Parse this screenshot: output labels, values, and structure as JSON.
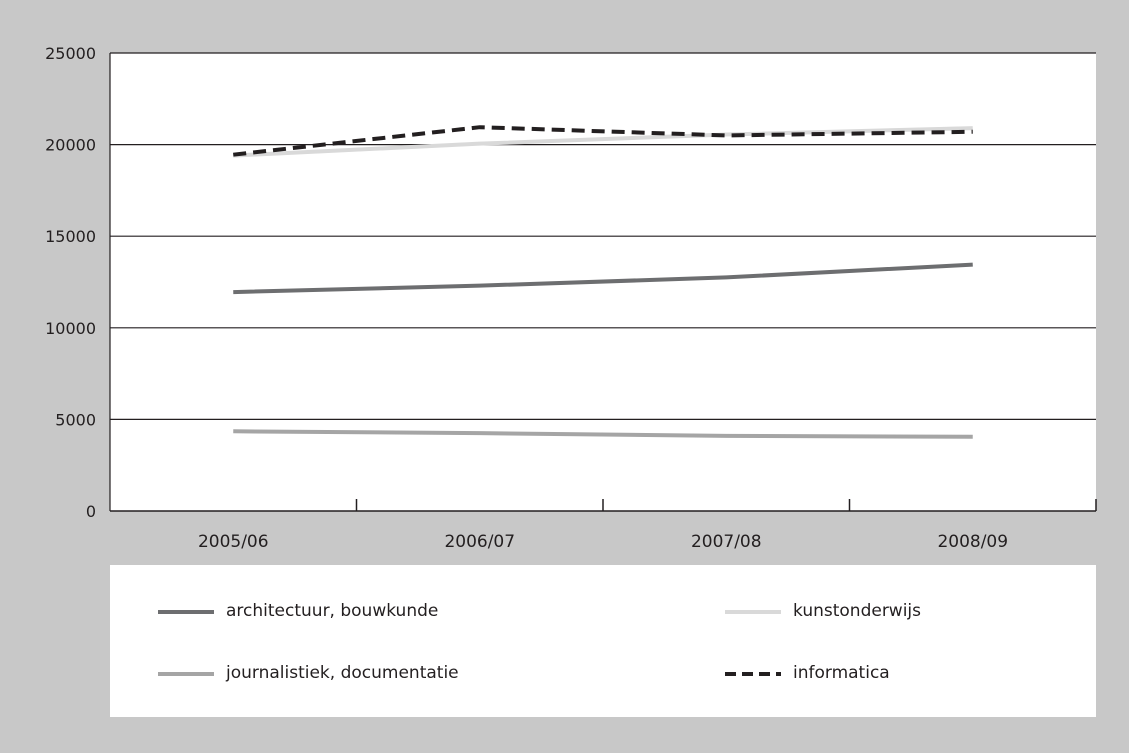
{
  "chart_data": {
    "type": "line",
    "categories": [
      "2005/06",
      "2006/07",
      "2007/08",
      "2008/09"
    ],
    "yticks": [
      "0",
      "5000",
      "10000",
      "15000",
      "20000",
      "25000"
    ],
    "ylim": [
      0,
      25000
    ],
    "grid": true,
    "legend_position": "bottom",
    "series": [
      {
        "name": "architectuur, bouwkunde",
        "values": [
          11950,
          12300,
          12750,
          13450
        ],
        "color": "#6d6e70",
        "style": "solid"
      },
      {
        "name": "kunstonderwijs",
        "values": [
          19400,
          20050,
          20550,
          20900
        ],
        "color": "#d9d9d9",
        "style": "solid"
      },
      {
        "name": "journalistiek, documentatie",
        "values": [
          4350,
          4250,
          4100,
          4050
        ],
        "color": "#a5a5a5",
        "style": "solid"
      },
      {
        "name": "informatica",
        "values": [
          19450,
          20950,
          20500,
          20700
        ],
        "color": "#231f20",
        "style": "dashed"
      }
    ]
  }
}
